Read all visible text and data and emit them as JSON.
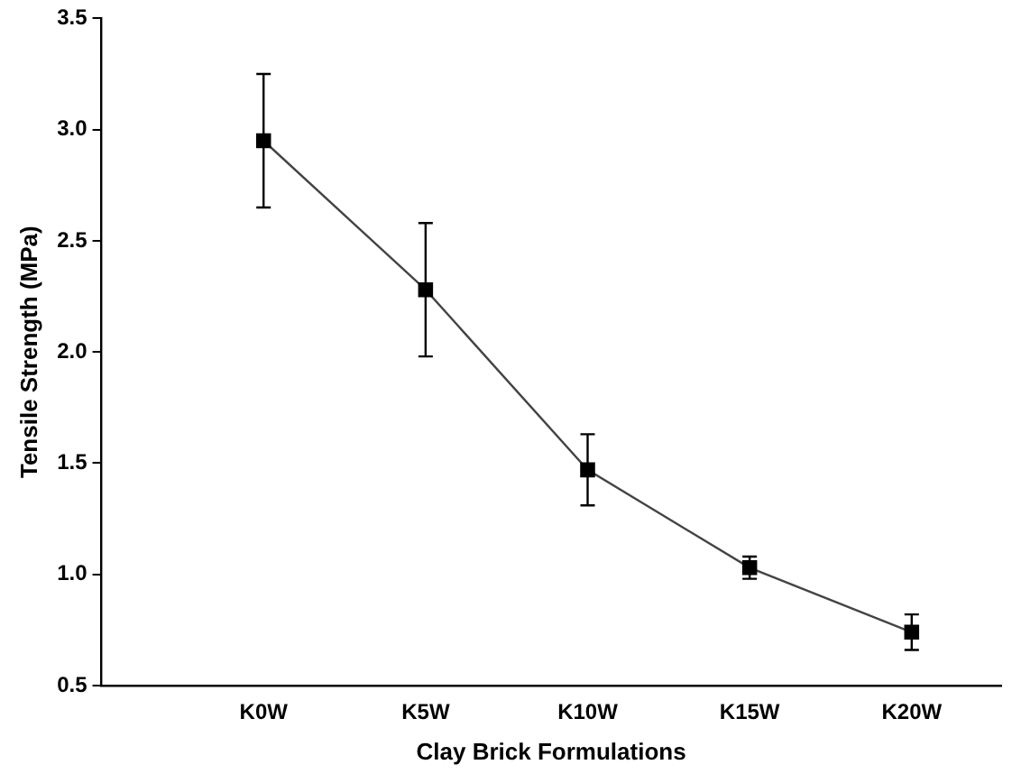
{
  "chart_data": {
    "type": "line",
    "xlabel": "Clay Brick Formulations",
    "ylabel": "Tensile Strength (MPa)",
    "categories": [
      "K0W",
      "K5W",
      "K10W",
      "K15W",
      "K20W"
    ],
    "series": [
      {
        "color": "#000000",
        "values": [
          2.95,
          2.28,
          1.47,
          1.03,
          0.74
        ],
        "errors": [
          0.3,
          0.3,
          0.16,
          0.05,
          0.08
        ]
      }
    ],
    "ylim": [
      0.5,
      3.5
    ],
    "yticks": [
      {
        "value": 0.5,
        "label": "0.5"
      },
      {
        "value": 1,
        "label": "1.0"
      },
      {
        "value": 1.5,
        "label": "1.5"
      },
      {
        "value": 2,
        "label": "2.0"
      },
      {
        "value": 2.5,
        "label": "2.5"
      },
      {
        "value": 3,
        "label": "3.0"
      },
      {
        "value": 3.5,
        "label": "3.5"
      }
    ],
    "grid": false,
    "legend": false,
    "marker": "square",
    "line_style": "solid"
  }
}
